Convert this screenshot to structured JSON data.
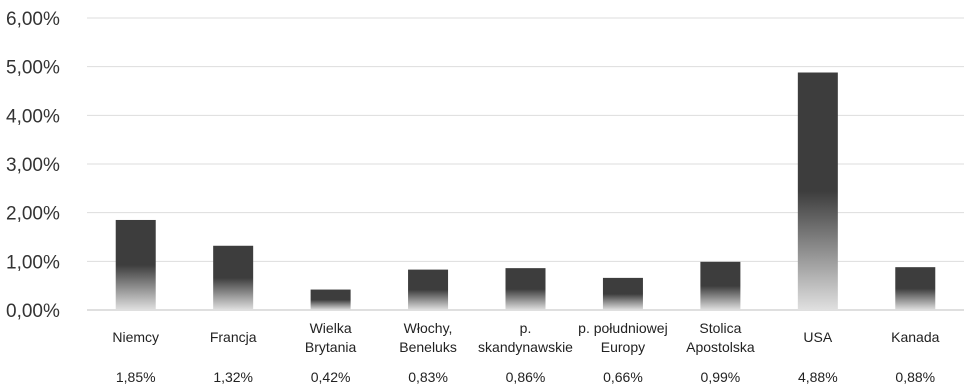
{
  "chart_data": {
    "type": "bar",
    "categories": [
      [
        "Niemcy"
      ],
      [
        "Francja"
      ],
      [
        "Wielka",
        "Brytania"
      ],
      [
        "Włochy,",
        "Beneluks"
      ],
      [
        "p.",
        "skandynawskie"
      ],
      [
        "p. południowej",
        "Europy"
      ],
      [
        "Stolica",
        "Apostolska"
      ],
      [
        "USA"
      ],
      [
        "Kanada"
      ]
    ],
    "values": [
      1.85,
      1.32,
      0.42,
      0.83,
      0.86,
      0.66,
      0.99,
      4.88,
      0.88
    ],
    "value_labels": [
      "1,85%",
      "1,32%",
      "0,42%",
      "0,83%",
      "0,86%",
      "0,66%",
      "0,99%",
      "4,88%",
      "0,88%"
    ],
    "yticks": [
      0,
      1,
      2,
      3,
      4,
      5,
      6
    ],
    "ytick_labels": [
      "0,00%",
      "1,00%",
      "2,00%",
      "3,00%",
      "4,00%",
      "5,00%",
      "6,00%"
    ],
    "ylim": [
      0,
      6
    ],
    "grid": true,
    "legend": "none",
    "colors": {
      "bar_top": "#3d3d3d",
      "bar_bottom": "#e0e0e0",
      "grid": "#dddddd",
      "axis": "#bfbfbf"
    }
  }
}
